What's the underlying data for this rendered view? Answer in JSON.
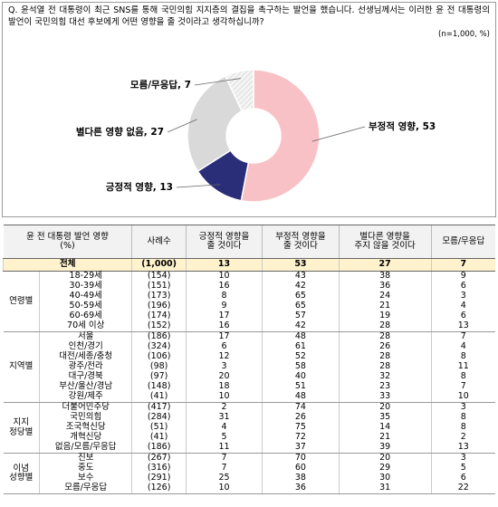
{
  "chart_data": {
    "type": "donut",
    "question": "Q. 윤석열 전 대통령이 최근 SNS를 통해 국민의힘 지지층의 결집을 촉구하는 발언을 했습니다. 선생님께서는 이러한 윤 전 대통령의 발언이 국민의힘 대선 후보에게 어떤 영향을 줄 것이라고 생각하십니까?",
    "note": "(n=1,000, %)",
    "values": [
      53,
      13,
      27,
      7
    ],
    "value_labels": [
      "부정적 영향, 53",
      "긍정적 영향, 13",
      "별다른 영향 없음, 27",
      "모름/무응답, 7"
    ],
    "colors": [
      "#f8c1c5",
      "#2a2d78",
      "#d9d9d9",
      "#f4f4f4"
    ]
  },
  "table": {
    "header": [
      "윤 전 대통령 발언 영향",
      "(%)",
      "사례수",
      "긍정적 영향을\n줄 것이다",
      "부정적 영향을\n줄 것이다",
      "별다른 영향을\n주지 않을 것이다",
      "모름/무응답"
    ],
    "total": [
      "전체",
      "(1,000)",
      "13",
      "53",
      "27",
      "7"
    ],
    "groups": [
      {
        "label": [
          "연령별"
        ],
        "rows": [
          [
            "18-29세",
            "(154)",
            "10",
            "43",
            "38",
            "9"
          ],
          [
            "30-39세",
            "(151)",
            "16",
            "42",
            "36",
            "6"
          ],
          [
            "40-49세",
            "(173)",
            "8",
            "65",
            "24",
            "3"
          ],
          [
            "50-59세",
            "(196)",
            "9",
            "65",
            "21",
            "4"
          ],
          [
            "60-69세",
            "(174)",
            "17",
            "57",
            "19",
            "6"
          ],
          [
            "70세 이상",
            "(152)",
            "16",
            "42",
            "28",
            "13"
          ]
        ]
      },
      {
        "label": [
          "지역별"
        ],
        "rows": [
          [
            "서울",
            "(186)",
            "17",
            "48",
            "28",
            "7"
          ],
          [
            "인천/경기",
            "(324)",
            "6",
            "61",
            "26",
            "4"
          ],
          [
            "대전/세종/충청",
            "(106)",
            "12",
            "52",
            "28",
            "8"
          ],
          [
            "광주/전라",
            "(98)",
            "3",
            "58",
            "28",
            "11"
          ],
          [
            "대구/경북",
            "(97)",
            "20",
            "40",
            "32",
            "8"
          ],
          [
            "부산/울산/경남",
            "(148)",
            "18",
            "51",
            "23",
            "7"
          ],
          [
            "강원/제주",
            "(41)",
            "10",
            "48",
            "33",
            "10"
          ]
        ]
      },
      {
        "label": [
          "지지",
          "정당별"
        ],
        "rows": [
          [
            "더불어민주당",
            "(417)",
            "2",
            "74",
            "20",
            "3"
          ],
          [
            "국민의힘",
            "(284)",
            "31",
            "26",
            "35",
            "8"
          ],
          [
            "조국혁신당",
            "(51)",
            "4",
            "75",
            "14",
            "8"
          ],
          [
            "개혁신당",
            "(41)",
            "5",
            "72",
            "21",
            "2"
          ],
          [
            "없음/모름/무응답",
            "(186)",
            "11",
            "37",
            "39",
            "13"
          ]
        ]
      },
      {
        "label": [
          "이념",
          "성향별"
        ],
        "rows": [
          [
            "진보",
            "(267)",
            "7",
            "70",
            "20",
            "3"
          ],
          [
            "중도",
            "(316)",
            "7",
            "60",
            "29",
            "5"
          ],
          [
            "보수",
            "(291)",
            "25",
            "38",
            "30",
            "6"
          ],
          [
            "모름/무응답",
            "(126)",
            "10",
            "36",
            "31",
            "22"
          ]
        ]
      }
    ]
  }
}
